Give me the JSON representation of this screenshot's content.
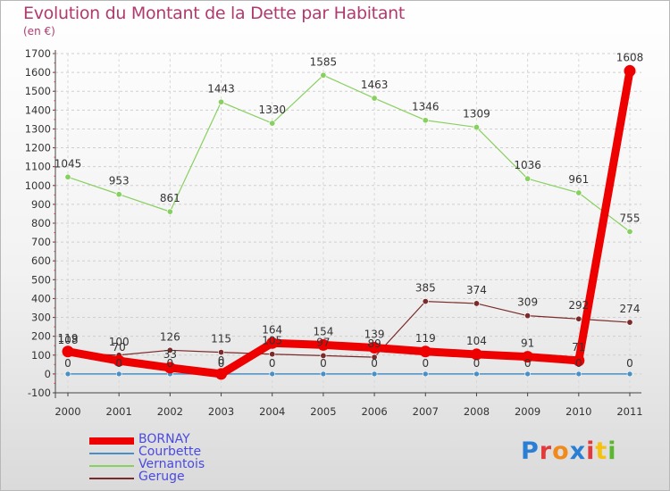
{
  "title": "Evolution du Montant de la Dette par Habitant",
  "subtitle": "(en €)",
  "logo": {
    "letters": [
      "P",
      "r",
      "o",
      "x",
      "i",
      "t",
      "i"
    ],
    "colors": [
      "#2a7fd4",
      "#e23a3a",
      "#f08a1a",
      "#2a7fd4",
      "#e23a3a",
      "#f5c211",
      "#5ab82e"
    ]
  },
  "chart_data": {
    "type": "line",
    "title": "Evolution du Montant de la Dette par Habitant",
    "ylabel": "(en €)",
    "xlabel": "",
    "categories": [
      "2000",
      "2001",
      "2002",
      "2003",
      "2004",
      "2005",
      "2006",
      "2007",
      "2008",
      "2009",
      "2010",
      "2011"
    ],
    "ylim": [
      -100,
      1700
    ],
    "yticks": [
      -100,
      0,
      100,
      200,
      300,
      400,
      500,
      600,
      700,
      800,
      900,
      1000,
      1100,
      1200,
      1300,
      1400,
      1500,
      1600,
      1700
    ],
    "grid": true,
    "legend": "bottom-left",
    "series": [
      {
        "name": "BORNAY",
        "color": "#ee0000",
        "width": 9,
        "marker": 6.5,
        "values": [
          119,
          70,
          33,
          0,
          164,
          154,
          139,
          119,
          104,
          91,
          71,
          1608
        ],
        "labels": [
          "119",
          "70",
          "33",
          "0",
          "164",
          "154",
          "139",
          "119",
          "104",
          "91",
          "71",
          "1608"
        ]
      },
      {
        "name": "Courbette",
        "color": "#4a8fc4",
        "width": 1.5,
        "marker": 3,
        "values": [
          0,
          0,
          0,
          0,
          0,
          0,
          0,
          0,
          0,
          0,
          0,
          0
        ],
        "labels": [
          "0",
          "0",
          "0",
          "0",
          "0",
          "0",
          "0",
          "0",
          "0",
          "0",
          "0",
          "0"
        ]
      },
      {
        "name": "Vernantois",
        "color": "#88d060",
        "width": 1.2,
        "marker": 3.2,
        "values": [
          1045,
          953,
          861,
          1443,
          1330,
          1585,
          1463,
          1346,
          1309,
          1036,
          961,
          755
        ],
        "labels": [
          "1045",
          "953",
          "861",
          "1443",
          "1330",
          "1585",
          "1463",
          "1346",
          "1309",
          "1036",
          "961",
          "755"
        ]
      },
      {
        "name": "Geruge",
        "color": "#7a2a2a",
        "width": 1.2,
        "marker": 3.2,
        "values": [
          108,
          100,
          126,
          115,
          105,
          97,
          89,
          385,
          374,
          309,
          292,
          274
        ],
        "labels": [
          "108",
          "100",
          "126",
          "115",
          "105",
          "97",
          "89",
          "385",
          "374",
          "309",
          "292",
          "274"
        ]
      }
    ]
  }
}
